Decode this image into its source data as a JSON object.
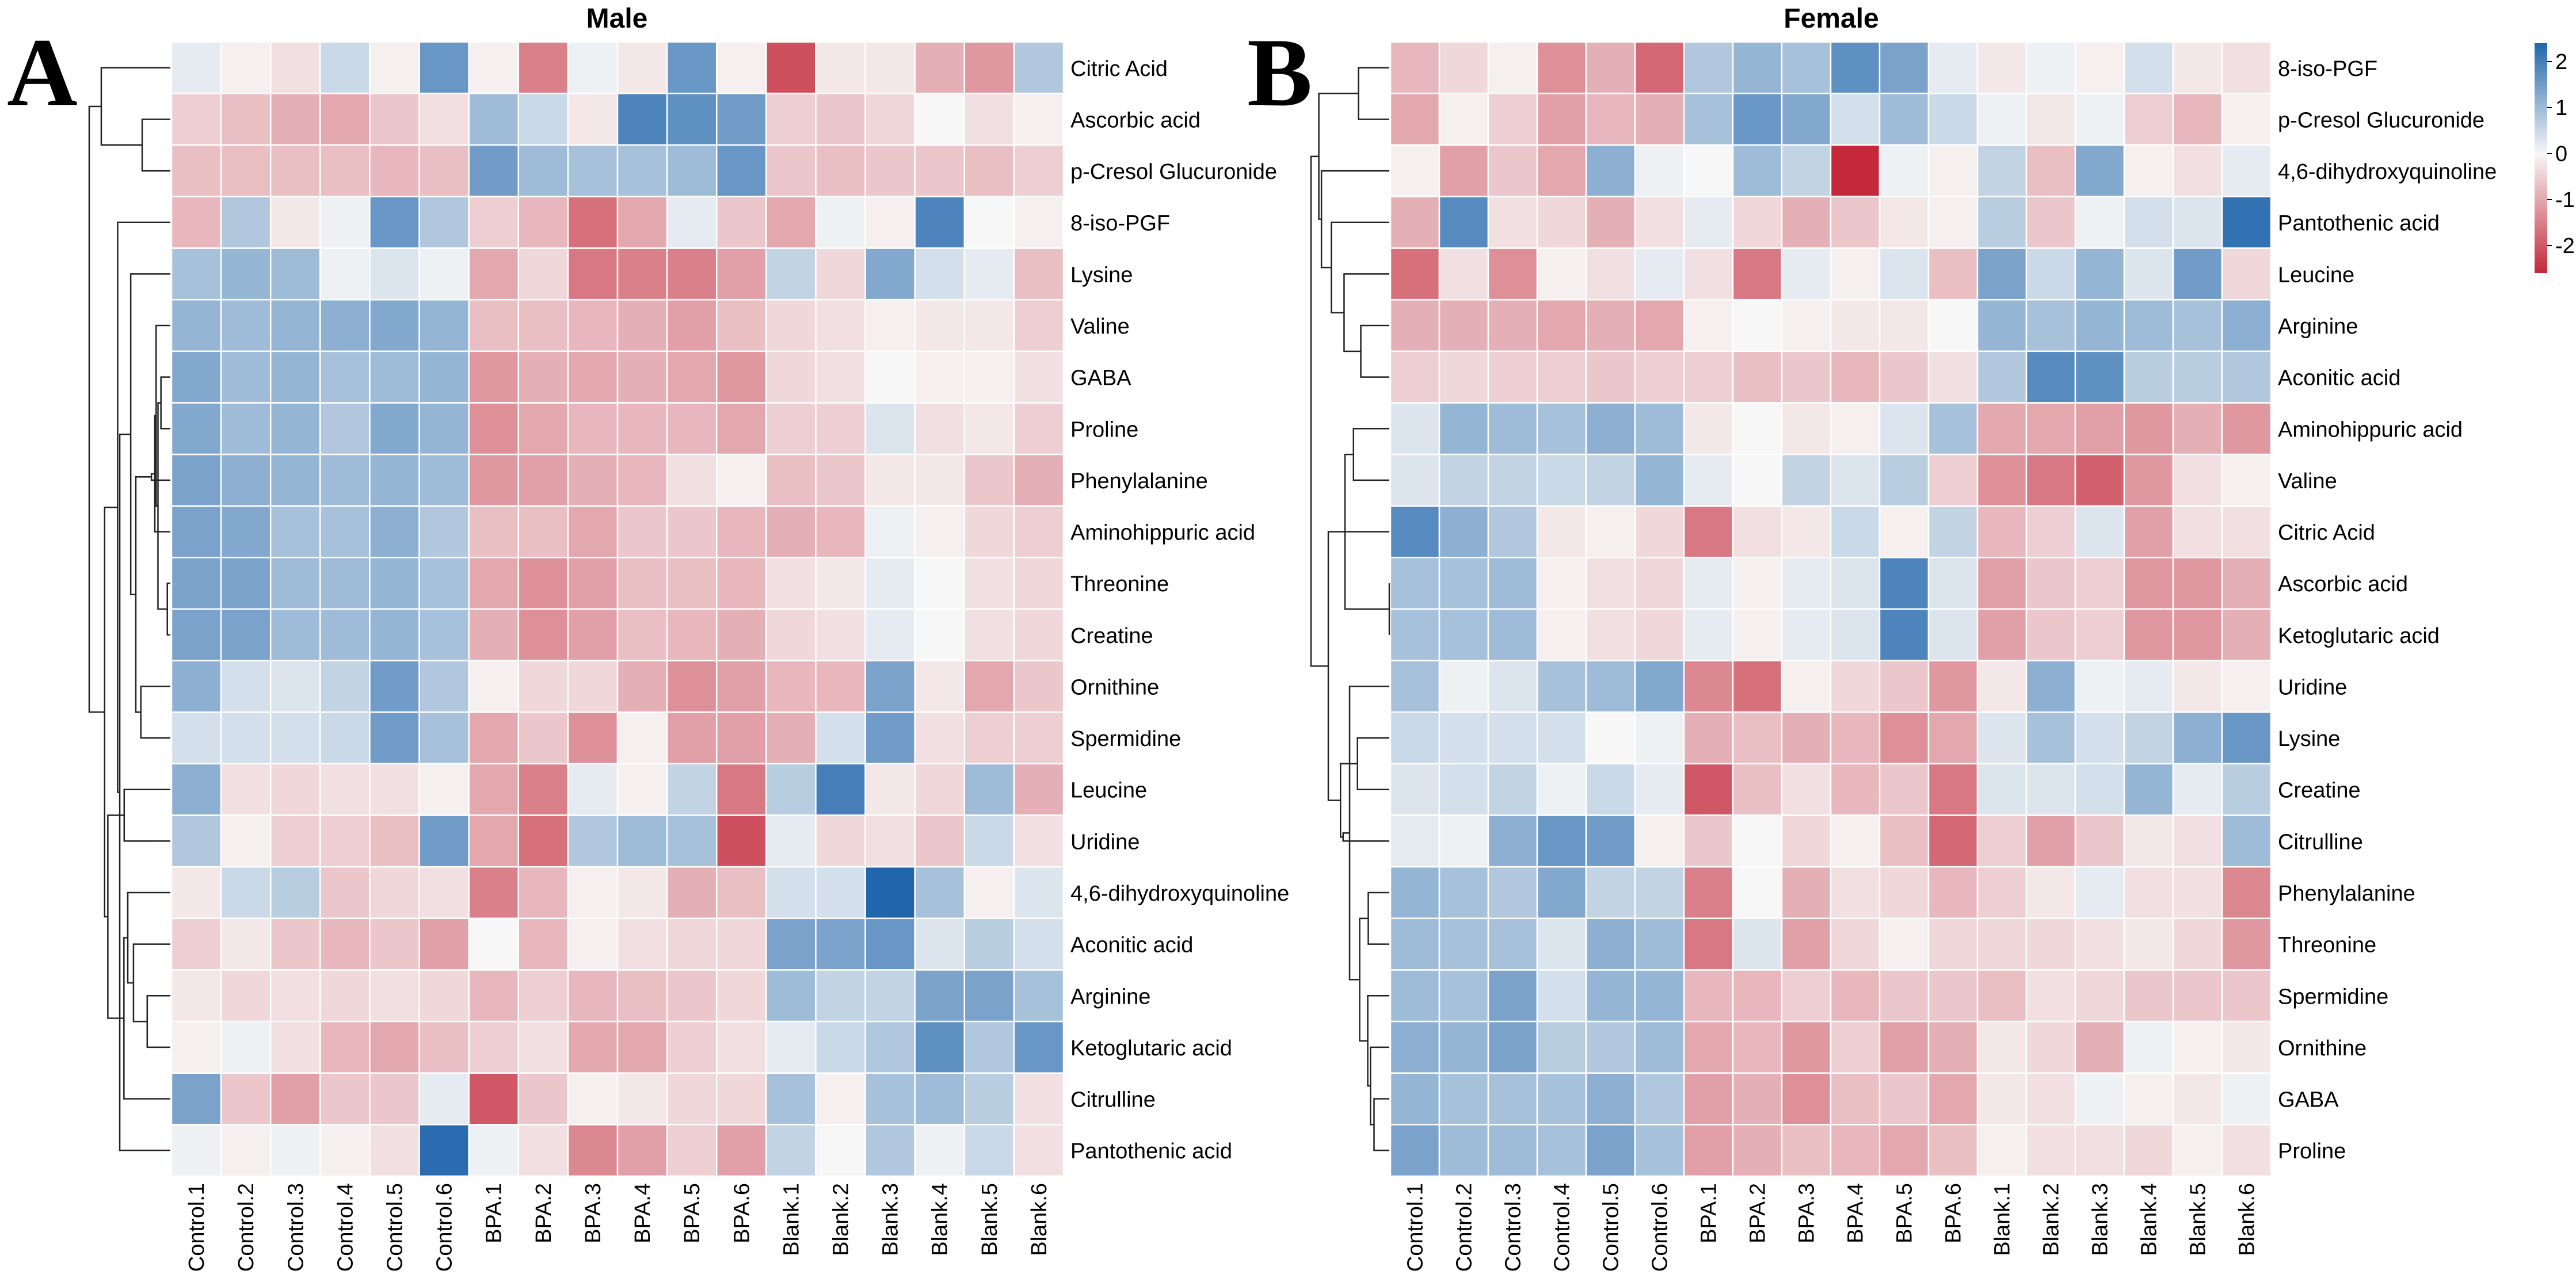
{
  "chart_data": [
    {
      "type": "heatmap",
      "panel_label": "A",
      "title": "Male",
      "columns": [
        "Control.1",
        "Control.2",
        "Control.3",
        "Control.4",
        "Control.5",
        "Control.6",
        "BPA.1",
        "BPA.2",
        "BPA.3",
        "BPA.4",
        "BPA.5",
        "BPA.6",
        "Blank.1",
        "Blank.2",
        "Blank.3",
        "Blank.4",
        "Blank.5",
        "Blank.6"
      ],
      "rows": [
        "Citric Acid",
        "Ascorbic acid",
        "p-Cresol Glucuronide",
        "8-iso-PGF",
        "Lysine",
        "Valine",
        "GABA",
        "Proline",
        "Phenylalanine",
        "Aminohippuric acid",
        "Threonine",
        "Creatine",
        "Ornithine",
        "Spermidine",
        "Leucine",
        "Uridine",
        "4,6-dihydroxyquinoline",
        "Aconitic acid",
        "Arginine",
        "Ketoglutaric acid",
        "Citrulline",
        "Pantothenic acid"
      ],
      "values": [
        [
          0.2,
          -0.1,
          -0.3,
          0.5,
          -0.1,
          1.6,
          -0.1,
          -1.5,
          0.1,
          -0.2,
          1.6,
          -0.1,
          -2.1,
          -0.2,
          -0.2,
          -0.9,
          -1.2,
          0.8
        ],
        [
          -0.5,
          -0.7,
          -0.9,
          -1.0,
          -0.6,
          -0.3,
          1.0,
          0.5,
          -0.2,
          1.9,
          1.7,
          1.5,
          -0.5,
          -0.6,
          -0.4,
          0.0,
          -0.3,
          -0.1
        ],
        [
          -0.7,
          -0.7,
          -0.7,
          -0.7,
          -0.8,
          -0.7,
          1.5,
          1.0,
          0.9,
          0.9,
          1.0,
          1.6,
          -0.6,
          -0.7,
          -0.6,
          -0.6,
          -0.7,
          -0.5
        ],
        [
          -0.8,
          0.8,
          -0.2,
          0.1,
          1.6,
          0.8,
          -0.5,
          -0.8,
          -1.7,
          -1.0,
          0.2,
          -0.6,
          -1.0,
          0.1,
          -0.1,
          1.9,
          0.0,
          -0.1
        ],
        [
          0.9,
          1.1,
          1.0,
          0.1,
          0.3,
          0.1,
          -1.0,
          -0.4,
          -1.6,
          -1.5,
          -1.5,
          -1.1,
          0.6,
          -0.4,
          1.3,
          0.4,
          0.2,
          -0.7
        ],
        [
          1.1,
          1.0,
          1.1,
          1.2,
          1.3,
          1.1,
          -0.7,
          -0.7,
          -0.8,
          -0.9,
          -1.1,
          -0.7,
          -0.4,
          -0.3,
          -0.1,
          -0.2,
          -0.2,
          -0.5
        ],
        [
          1.3,
          1.0,
          1.1,
          0.9,
          1.0,
          1.1,
          -1.2,
          -0.9,
          -1.0,
          -0.9,
          -1.0,
          -1.2,
          -0.4,
          -0.3,
          0.0,
          -0.1,
          -0.1,
          -0.3
        ],
        [
          1.3,
          1.0,
          1.1,
          0.8,
          1.3,
          1.1,
          -1.3,
          -1.0,
          -0.8,
          -0.8,
          -0.8,
          -1.0,
          -0.5,
          -0.5,
          0.3,
          -0.3,
          -0.2,
          -0.5
        ],
        [
          1.4,
          1.2,
          1.1,
          1.0,
          1.1,
          1.0,
          -1.2,
          -1.1,
          -0.9,
          -0.8,
          -0.3,
          -0.1,
          -0.7,
          -0.6,
          -0.2,
          -0.2,
          -0.6,
          -0.9
        ],
        [
          1.4,
          1.3,
          0.9,
          0.9,
          1.2,
          0.8,
          -0.7,
          -0.7,
          -1.0,
          -0.6,
          -0.6,
          -0.8,
          -0.9,
          -0.8,
          0.1,
          -0.1,
          -0.4,
          -0.5
        ],
        [
          1.4,
          1.4,
          1.0,
          1.0,
          1.1,
          0.9,
          -1.0,
          -1.3,
          -1.1,
          -0.7,
          -0.7,
          -0.8,
          -0.3,
          -0.2,
          0.2,
          0.0,
          -0.3,
          -0.4
        ],
        [
          1.4,
          1.4,
          1.0,
          1.0,
          1.1,
          0.9,
          -0.9,
          -1.3,
          -1.1,
          -0.7,
          -0.8,
          -0.9,
          -0.4,
          -0.3,
          0.2,
          0.0,
          -0.3,
          -0.4
        ],
        [
          1.2,
          0.4,
          0.3,
          0.6,
          1.5,
          0.8,
          -0.1,
          -0.4,
          -0.4,
          -0.9,
          -1.3,
          -1.1,
          -0.8,
          -0.8,
          1.4,
          -0.2,
          -1.0,
          -0.6
        ],
        [
          0.4,
          0.4,
          0.4,
          0.5,
          1.5,
          0.9,
          -1.0,
          -0.6,
          -1.3,
          -0.1,
          -1.1,
          -1.1,
          -0.9,
          0.4,
          1.5,
          -0.3,
          -0.5,
          -0.5
        ],
        [
          1.2,
          -0.3,
          -0.4,
          -0.3,
          -0.3,
          -0.1,
          -1.0,
          -1.5,
          0.2,
          -0.1,
          0.6,
          -1.6,
          0.7,
          2.0,
          -0.2,
          -0.4,
          1.0,
          -0.9
        ],
        [
          0.8,
          -0.1,
          -0.5,
          -0.5,
          -0.7,
          1.5,
          -1.0,
          -1.7,
          0.8,
          1.0,
          0.9,
          -2.1,
          0.2,
          -0.4,
          -0.3,
          -0.6,
          0.5,
          -0.3
        ],
        [
          -0.2,
          0.5,
          0.7,
          -0.6,
          -0.4,
          -0.3,
          -1.5,
          -0.8,
          -0.1,
          -0.2,
          -0.9,
          -0.7,
          0.4,
          0.4,
          2.4,
          0.9,
          -0.1,
          0.3
        ],
        [
          -0.5,
          -0.2,
          -0.6,
          -0.8,
          -0.6,
          -1.1,
          0.0,
          -0.8,
          -0.1,
          -0.3,
          -0.4,
          -0.4,
          1.4,
          1.4,
          1.6,
          0.3,
          0.7,
          0.4
        ],
        [
          -0.2,
          -0.4,
          -0.3,
          -0.4,
          -0.3,
          -0.4,
          -0.8,
          -0.5,
          -0.8,
          -0.7,
          -0.6,
          -0.4,
          1.0,
          0.6,
          0.6,
          1.4,
          1.4,
          0.9
        ],
        [
          -0.1,
          0.1,
          -0.3,
          -0.8,
          -1.0,
          -0.7,
          -0.5,
          -0.3,
          -1.0,
          -1.0,
          -0.5,
          -0.3,
          0.2,
          0.5,
          0.8,
          1.7,
          0.8,
          1.6
        ],
        [
          1.4,
          -0.6,
          -1.1,
          -0.6,
          -0.6,
          0.2,
          -2.0,
          -0.6,
          -0.1,
          -0.2,
          -0.4,
          -0.4,
          0.9,
          -0.1,
          0.9,
          1.0,
          0.7,
          -0.3
        ],
        [
          0.1,
          -0.1,
          0.1,
          -0.1,
          -0.3,
          2.3,
          0.1,
          -0.3,
          -1.4,
          -1.1,
          -0.5,
          -1.1,
          0.6,
          0.0,
          0.8,
          0.1,
          0.5,
          -0.3
        ]
      ]
    },
    {
      "type": "heatmap",
      "panel_label": "B",
      "title": "Female",
      "columns": [
        "Control.1",
        "Control.2",
        "Control.3",
        "Control.4",
        "Control.5",
        "Control.6",
        "BPA.1",
        "BPA.2",
        "BPA.3",
        "BPA.4",
        "BPA.5",
        "BPA.6",
        "Blank.1",
        "Blank.2",
        "Blank.3",
        "Blank.4",
        "Blank.5",
        "Blank.6"
      ],
      "rows": [
        "8-iso-PGF",
        "p-Cresol Glucuronide",
        "4,6-dihydroxyquinoline",
        "Pantothenic acid",
        "Leucine",
        "Arginine",
        "Aconitic acid",
        "Aminohippuric acid",
        "Valine",
        "Citric Acid",
        "Ascorbic acid",
        "Ketoglutaric acid",
        "Uridine",
        "Lysine",
        "Creatine",
        "Citrulline",
        "Phenylalanine",
        "Threonine",
        "Spermidine",
        "Ornithine",
        "GABA",
        "Proline"
      ],
      "values": [
        [
          -0.8,
          -0.4,
          -0.1,
          -1.3,
          -0.9,
          -1.8,
          0.8,
          1.1,
          0.9,
          1.7,
          1.4,
          0.2,
          -0.2,
          0.1,
          -0.1,
          0.4,
          -0.2,
          -0.3
        ],
        [
          -1.0,
          -0.1,
          -0.5,
          -1.1,
          -0.8,
          -0.9,
          0.9,
          1.6,
          1.3,
          0.4,
          1.0,
          0.5,
          0.1,
          -0.2,
          0.1,
          -0.5,
          -0.8,
          -0.1
        ],
        [
          -0.1,
          -1.1,
          -0.6,
          -1.0,
          1.2,
          0.1,
          0.0,
          1.0,
          0.6,
          -2.6,
          0.1,
          -0.1,
          0.6,
          -0.7,
          1.3,
          -0.1,
          -0.3,
          0.2
        ],
        [
          -0.9,
          1.8,
          -0.3,
          -0.4,
          -0.9,
          -0.3,
          0.2,
          -0.4,
          -0.9,
          -0.6,
          -0.2,
          -0.1,
          0.7,
          -0.6,
          0.1,
          0.4,
          0.3,
          2.2
        ],
        [
          -1.7,
          -0.3,
          -1.3,
          -0.1,
          -0.3,
          0.2,
          -0.3,
          -1.6,
          0.2,
          -0.1,
          0.3,
          -0.7,
          1.4,
          0.5,
          1.1,
          0.3,
          1.5,
          -0.4
        ],
        [
          -0.9,
          -0.9,
          -0.9,
          -1.0,
          -0.9,
          -1.0,
          -0.1,
          0.0,
          -0.1,
          -0.2,
          -0.2,
          0.0,
          1.1,
          0.9,
          1.1,
          1.0,
          0.9,
          1.2
        ],
        [
          -0.5,
          -0.4,
          -0.5,
          -0.5,
          -0.6,
          -0.5,
          -0.5,
          -0.7,
          -0.6,
          -0.8,
          -0.6,
          -0.3,
          0.8,
          1.8,
          1.7,
          0.7,
          0.7,
          0.8
        ],
        [
          0.3,
          1.1,
          1.0,
          0.9,
          1.2,
          1.0,
          -0.2,
          0.0,
          -0.2,
          -0.1,
          0.3,
          0.9,
          -1.0,
          -1.0,
          -1.1,
          -1.2,
          -0.9,
          -1.2
        ],
        [
          0.3,
          0.6,
          0.6,
          0.5,
          0.6,
          1.1,
          0.2,
          0.0,
          0.6,
          0.3,
          0.7,
          -0.5,
          -1.3,
          -1.6,
          -1.9,
          -1.2,
          -0.3,
          -0.1
        ],
        [
          1.8,
          1.2,
          0.8,
          -0.2,
          -0.1,
          -0.4,
          -1.6,
          -0.3,
          -0.2,
          0.5,
          -0.1,
          0.6,
          -0.8,
          -0.5,
          0.3,
          -1.1,
          -0.3,
          -0.3
        ],
        [
          0.9,
          0.9,
          1.0,
          -0.1,
          -0.3,
          -0.4,
          0.2,
          -0.1,
          0.2,
          0.3,
          1.9,
          0.3,
          -1.1,
          -0.6,
          -0.5,
          -1.2,
          -1.2,
          -0.9
        ],
        [
          0.9,
          0.9,
          1.0,
          -0.1,
          -0.3,
          -0.4,
          0.2,
          -0.1,
          0.2,
          0.3,
          1.9,
          0.3,
          -1.1,
          -0.6,
          -0.5,
          -1.2,
          -1.2,
          -0.9
        ],
        [
          0.9,
          0.1,
          0.3,
          0.9,
          1.0,
          1.3,
          -1.4,
          -1.7,
          -0.1,
          -0.4,
          -0.6,
          -1.2,
          -0.2,
          1.2,
          0.1,
          0.2,
          -0.2,
          -0.1
        ],
        [
          0.5,
          0.4,
          0.4,
          0.4,
          0.0,
          0.1,
          -0.9,
          -0.7,
          -0.9,
          -0.8,
          -1.3,
          -1.0,
          0.3,
          0.9,
          0.4,
          0.6,
          1.2,
          1.6
        ],
        [
          0.3,
          0.4,
          0.6,
          0.1,
          0.5,
          0.2,
          -2.0,
          -0.7,
          -0.3,
          -0.8,
          -0.6,
          -1.6,
          0.3,
          0.3,
          0.4,
          1.1,
          0.2,
          0.7
        ],
        [
          0.2,
          0.1,
          1.2,
          1.6,
          1.5,
          -0.1,
          -0.6,
          0.0,
          -0.4,
          -0.1,
          -0.7,
          -1.8,
          -0.5,
          -1.1,
          -0.6,
          -0.2,
          -0.3,
          1.0
        ],
        [
          1.1,
          0.9,
          0.8,
          1.3,
          0.6,
          0.6,
          -1.5,
          0.0,
          -0.9,
          -0.3,
          -0.4,
          -0.8,
          -0.5,
          -0.2,
          0.2,
          -0.3,
          -0.3,
          -1.4
        ],
        [
          1.0,
          0.9,
          0.9,
          0.3,
          1.2,
          1.0,
          -1.6,
          0.3,
          -1.1,
          -0.4,
          -0.1,
          -0.4,
          -0.4,
          -0.4,
          -0.3,
          -0.2,
          -0.4,
          -1.2
        ],
        [
          1.0,
          0.9,
          1.4,
          0.4,
          1.1,
          1.1,
          -0.8,
          -0.8,
          -0.5,
          -0.8,
          -0.6,
          -0.6,
          -0.7,
          -0.3,
          -0.4,
          -0.6,
          -0.6,
          -0.6
        ],
        [
          1.2,
          1.1,
          1.4,
          0.7,
          0.8,
          1.0,
          -1.0,
          -0.8,
          -1.2,
          -0.5,
          -1.1,
          -0.9,
          -0.2,
          -0.4,
          -0.9,
          0.1,
          -0.1,
          -0.2
        ],
        [
          1.1,
          0.9,
          0.9,
          0.9,
          1.2,
          0.8,
          -1.1,
          -0.9,
          -1.3,
          -0.7,
          -0.6,
          -1.0,
          -0.2,
          -0.3,
          0.1,
          -0.1,
          -0.2,
          0.1
        ],
        [
          1.4,
          1.0,
          1.0,
          0.9,
          1.4,
          0.9,
          -1.1,
          -0.9,
          -0.7,
          -0.8,
          -1.0,
          -0.7,
          -0.1,
          -0.3,
          -0.3,
          -0.4,
          -0.1,
          -0.3
        ]
      ]
    }
  ],
  "colorbar": {
    "range": [
      -2.6,
      2.4
    ],
    "ticks": [
      2,
      1,
      0,
      -1,
      -2
    ],
    "tick_labels": [
      "2",
      "1",
      "0",
      "-1",
      "-2"
    ],
    "colors": {
      "high": "#2166ac",
      "mid": "#f7f7f7",
      "low": "#c4283a"
    }
  },
  "colors": {
    "cell_border": "#ffffff",
    "text": "#000000",
    "dendrogram": "#222222"
  }
}
